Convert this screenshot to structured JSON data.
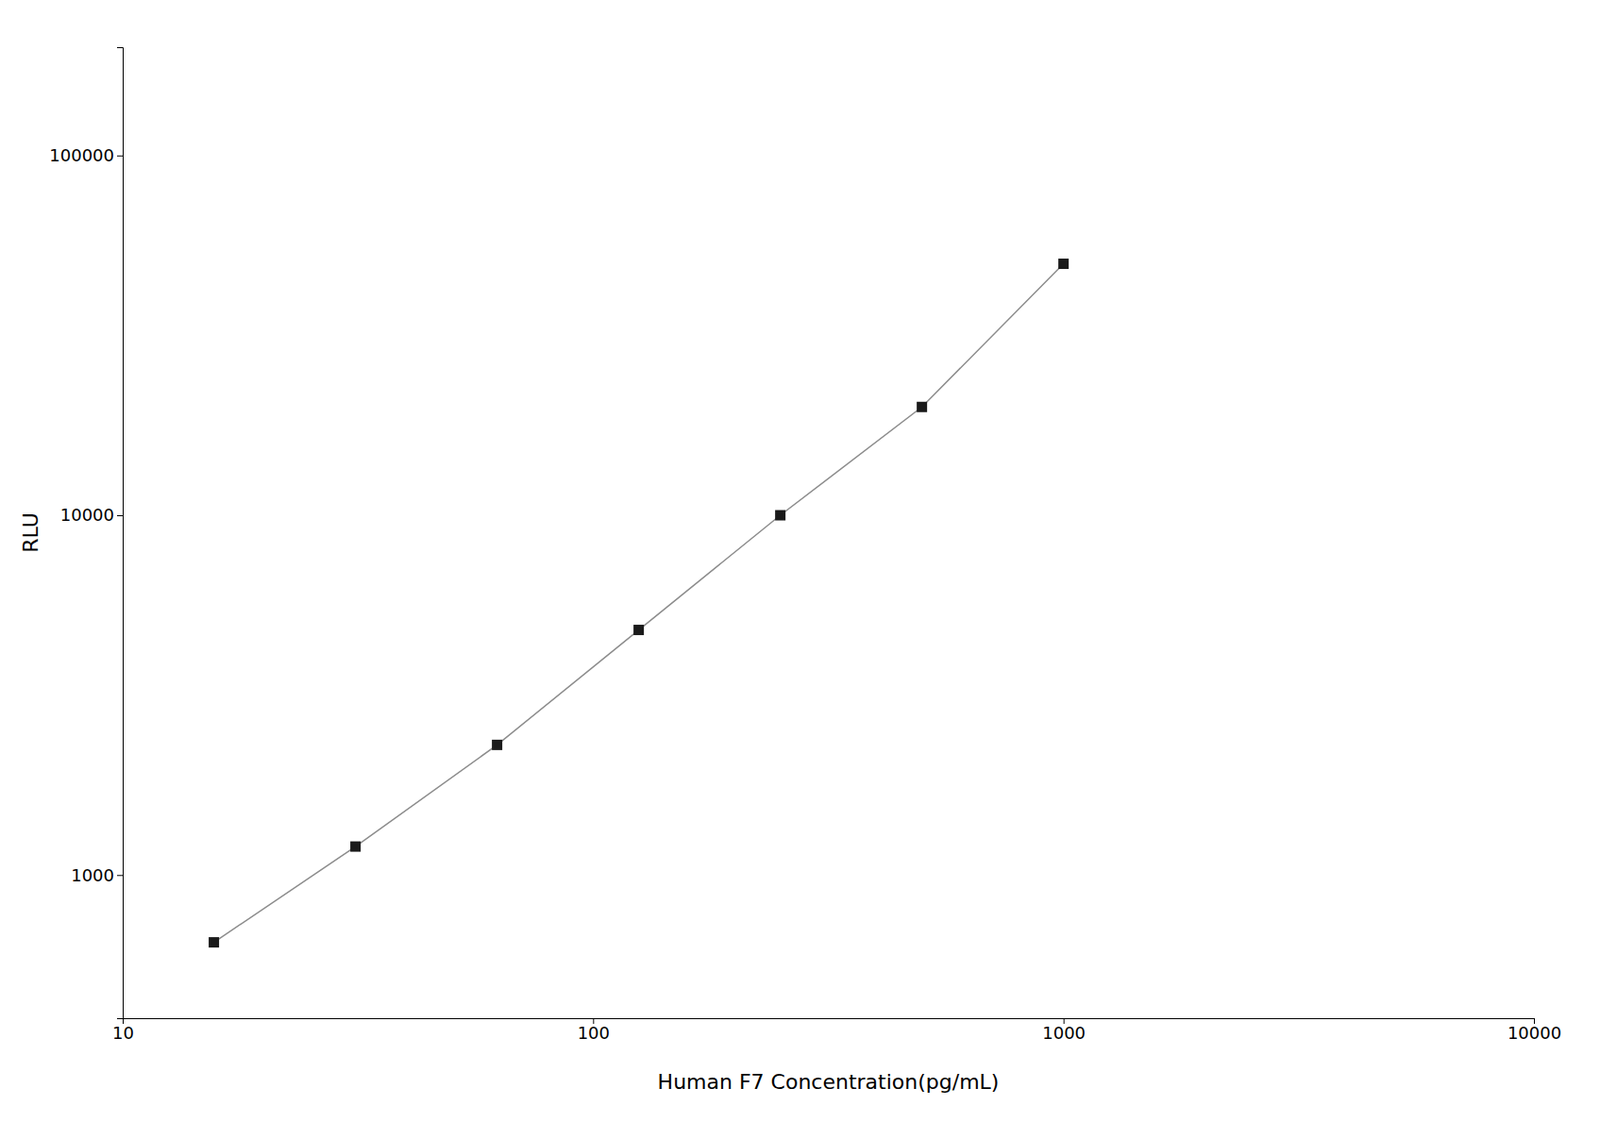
{
  "chart_data": {
    "type": "line",
    "x": [
      15.625,
      31.25,
      62.5,
      125,
      250,
      500,
      1000
    ],
    "values": [
      650,
      1200,
      2300,
      4800,
      10000,
      20000,
      50000
    ],
    "x_label": "Human F7 Concentration(pg/mL)",
    "y_label": "RLU",
    "xlim": [
      10,
      10000
    ],
    "ylim": [
      400,
      200000
    ],
    "xticks": [
      10,
      100,
      1000,
      10000
    ],
    "yticks": [
      1000,
      10000,
      100000
    ],
    "log": true,
    "grid": false,
    "color": "#1a1a1a",
    "marker": "square"
  }
}
